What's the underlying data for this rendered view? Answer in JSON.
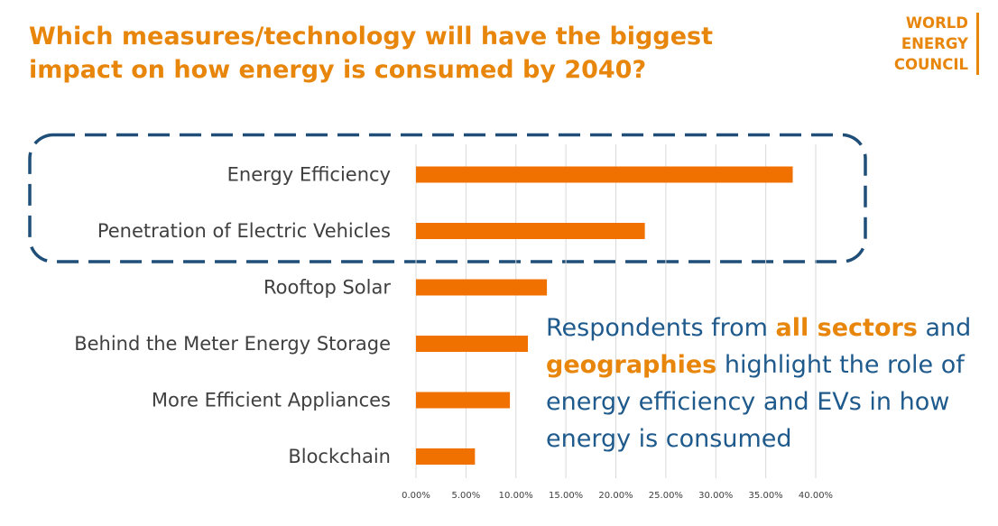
{
  "header": {
    "title": "Which measures/technology will have the biggest impact on how energy is consumed by 2040?"
  },
  "logo": {
    "lines": [
      "WORLD",
      "ENERGY",
      "COUNCIL"
    ]
  },
  "chart_data": {
    "type": "bar",
    "orientation": "horizontal",
    "categories": [
      "Energy Efficiency",
      "Penetration of Electric Vehicles",
      "Rooftop Solar",
      "Behind the Meter Energy Storage",
      "More Efficient Appliances",
      "Blockchain"
    ],
    "values": [
      37.7,
      22.9,
      13.1,
      11.2,
      9.4,
      5.9
    ],
    "xlim": [
      0,
      40
    ],
    "xticks": [
      0,
      5,
      10,
      15,
      20,
      25,
      30,
      35,
      40
    ],
    "xtick_labels": [
      "0.00%",
      "5.00%",
      "10.00%",
      "15.00%",
      "20.00%",
      "25.00%",
      "30.00%",
      "35.00%",
      "40.00%"
    ],
    "grid": "vertical",
    "highlighted_categories": [
      "Energy Efficiency",
      "Penetration of Electric Vehicles"
    ],
    "colors": {
      "bar": "#F07100",
      "grid": "#D9D9D9",
      "highlight_box": "#1F4E79"
    }
  },
  "annotation": {
    "part1": "Respondents from ",
    "highlight1": "all sectors",
    "part2": " and ",
    "highlight2": "geographies",
    "part3": " highlight the role of energy efficiency and EVs in how energy is consumed"
  }
}
